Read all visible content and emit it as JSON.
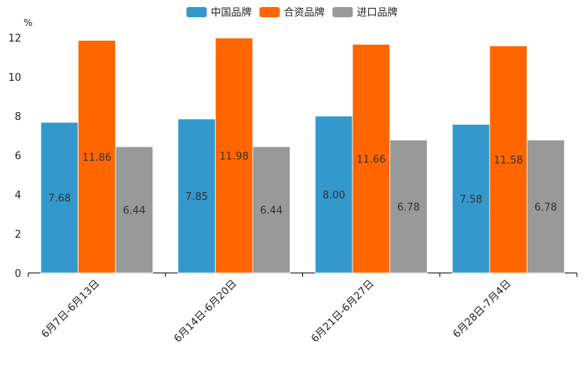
{
  "chart_data": {
    "type": "bar",
    "title": "",
    "xlabel": "",
    "ylabel": "%",
    "ylim": [
      0,
      12
    ],
    "yticks": [
      0,
      2,
      4,
      6,
      8,
      10,
      12
    ],
    "grid": false,
    "legend_position": "top-center",
    "categories": [
      "6月7日-6月13日",
      "6月14日-6月20日",
      "6月21日-6月27日",
      "6月28日-7月4日"
    ],
    "series": [
      {
        "name": "中国品牌",
        "color": "#3399cc",
        "values": [
          7.68,
          7.85,
          8.0,
          7.58
        ],
        "labels": [
          "7.68",
          "7.85",
          "8.00",
          "7.58"
        ]
      },
      {
        "name": "合资品牌",
        "color": "#ff6600",
        "values": [
          11.86,
          11.98,
          11.66,
          11.58
        ],
        "labels": [
          "11.86",
          "11.98",
          "11.66",
          "11.58"
        ]
      },
      {
        "name": "进口品牌",
        "color": "#999999",
        "values": [
          6.44,
          6.44,
          6.78,
          6.78
        ],
        "labels": [
          "6.44",
          "6.44",
          "6.78",
          "6.78"
        ]
      }
    ]
  }
}
